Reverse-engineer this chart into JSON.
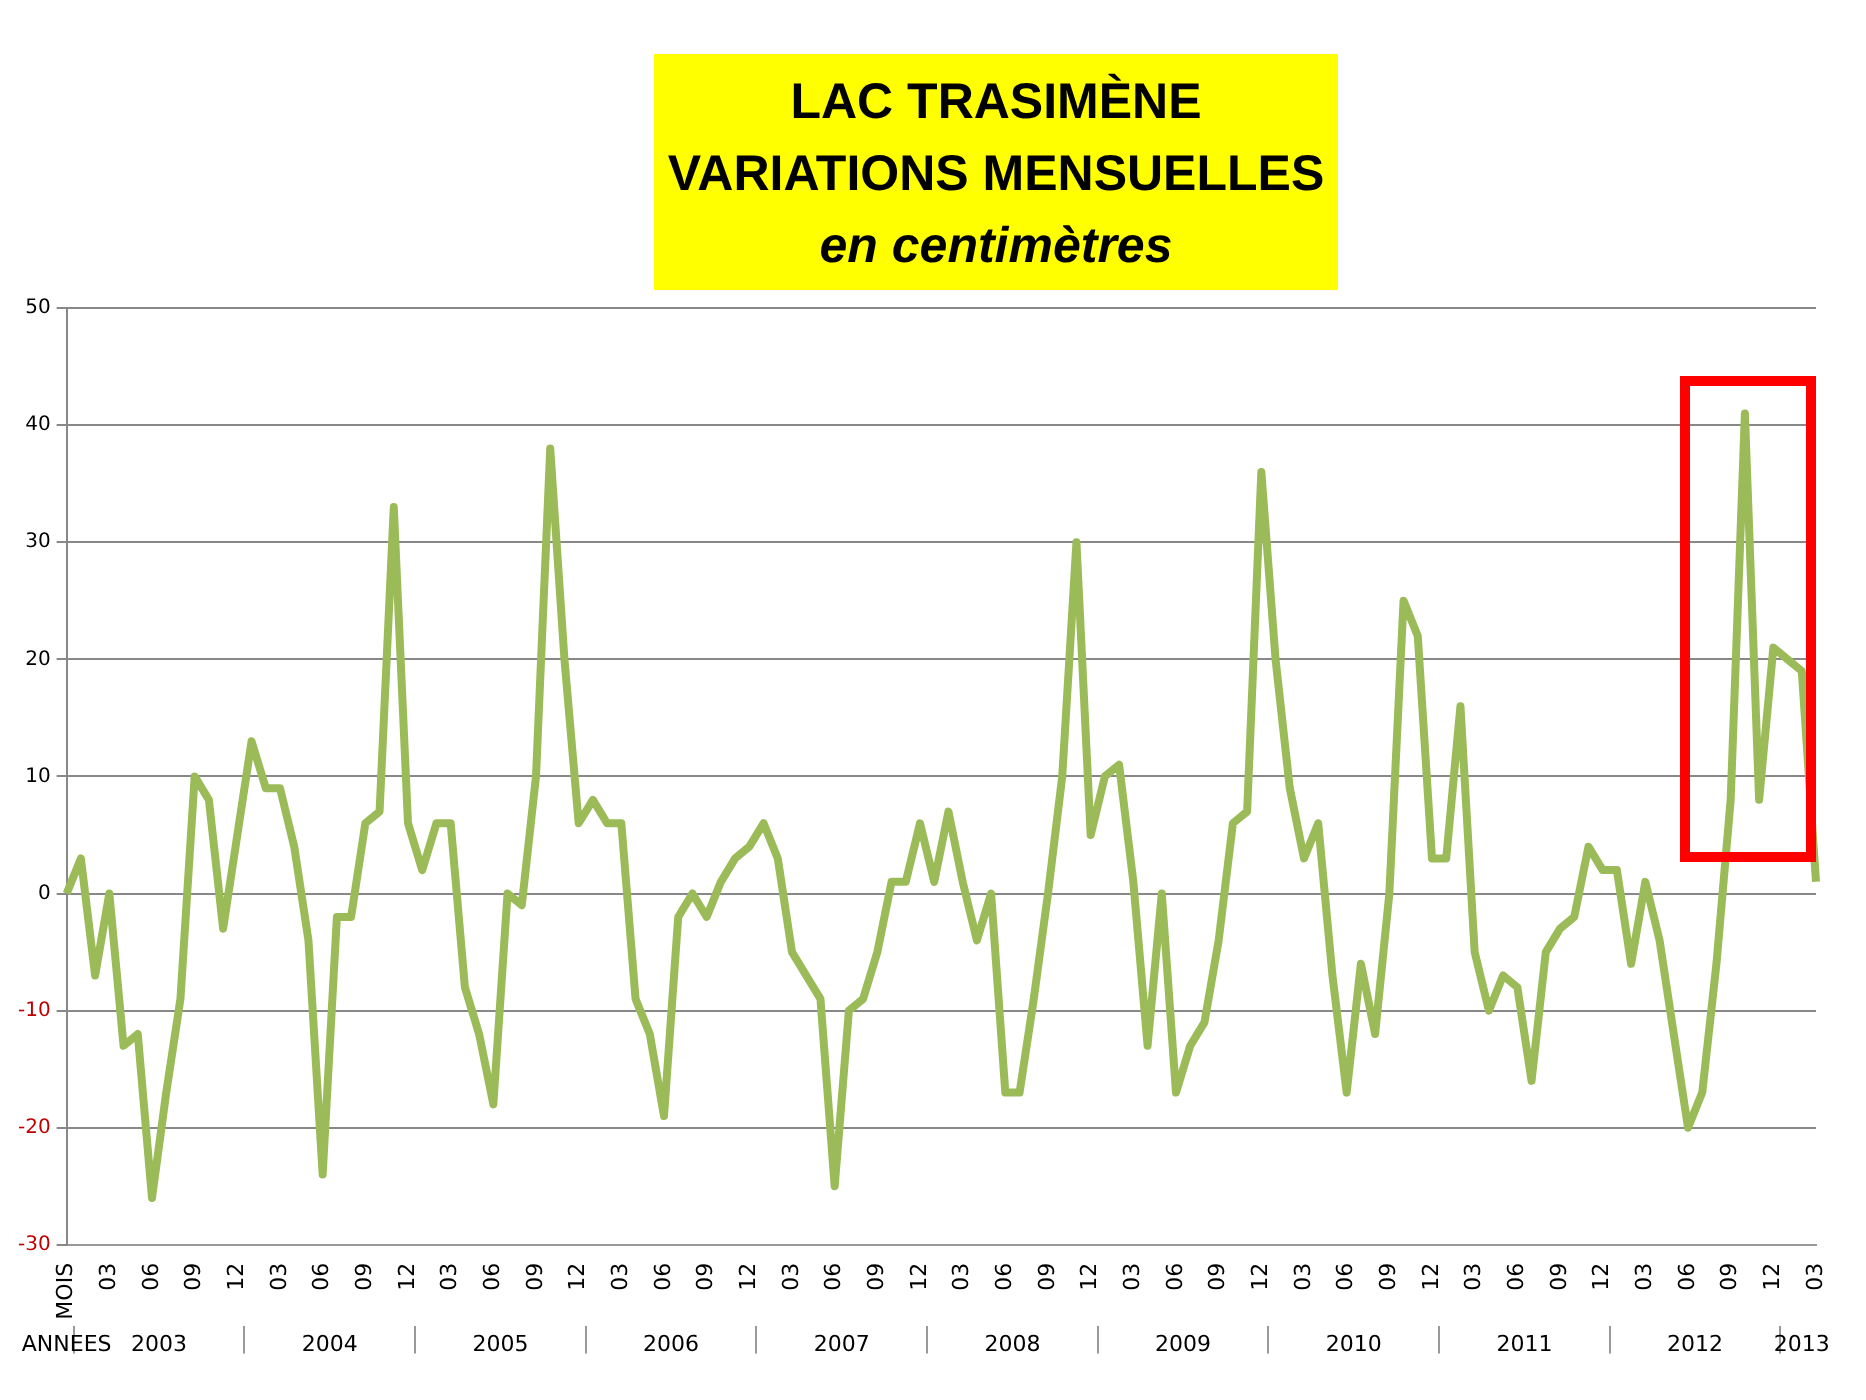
{
  "chart_data": {
    "type": "line",
    "title": "LAC TRASIMÈNE\nVARIATIONS MENSUELLES",
    "subtitle": "en centimètres",
    "categories": [
      "MOIS",
      null,
      null,
      "03",
      null,
      null,
      "06",
      null,
      null,
      "09",
      null,
      null,
      "12",
      null,
      null,
      "03",
      null,
      null,
      "06",
      null,
      null,
      "09",
      null,
      null,
      "12",
      null,
      null,
      "03",
      null,
      null,
      "06",
      null,
      null,
      "09",
      null,
      null,
      "12",
      null,
      null,
      "03",
      null,
      null,
      "06",
      null,
      null,
      "09",
      null,
      null,
      "12",
      null,
      null,
      "03",
      null,
      null,
      "06",
      null,
      null,
      "09",
      null,
      null,
      "12",
      null,
      null,
      "03",
      null,
      null,
      "06",
      null,
      null,
      "09",
      null,
      null,
      "12",
      null,
      null,
      "03",
      null,
      null,
      "06",
      null,
      null,
      "09",
      null,
      null,
      "12",
      null,
      null,
      "03",
      null,
      null,
      "06",
      null,
      null,
      "09",
      null,
      null,
      "12",
      null,
      null,
      "03",
      null,
      null,
      "06",
      null,
      null,
      "09",
      null,
      null,
      "12",
      null,
      null,
      "03",
      null,
      null,
      "06",
      null,
      null,
      "09",
      null,
      null,
      "12",
      null,
      null,
      "03"
    ],
    "series": [
      {
        "color": "#9bbb59",
        "values": [
          0,
          3,
          -7,
          0,
          -13,
          -12,
          -26,
          -17,
          -9,
          10,
          8,
          -3,
          5,
          13,
          9,
          9,
          4,
          -4,
          -24,
          -2,
          -2,
          6,
          7,
          33,
          6,
          2,
          6,
          6,
          -8,
          -12,
          -18,
          0,
          -1,
          10,
          38,
          20,
          6,
          8,
          6,
          6,
          -9,
          -12,
          -19,
          -2,
          0,
          -2,
          1,
          3,
          4,
          6,
          3,
          -5,
          -7,
          -9,
          -25,
          -10,
          -9,
          -5,
          1,
          1,
          6,
          1,
          7,
          1,
          -4,
          0,
          -17,
          -17,
          -9,
          0,
          10,
          30,
          5,
          10,
          11,
          1,
          -13,
          0,
          -17,
          -13,
          -11,
          -4,
          6,
          7,
          36,
          20,
          9,
          3,
          6,
          -7,
          -17,
          -6,
          -12,
          0,
          25,
          22,
          3,
          3,
          16,
          -5,
          -10,
          -7,
          -8,
          -16,
          -5,
          -3,
          -2,
          4,
          2,
          2,
          -6,
          1,
          -4,
          -12,
          -20,
          -17,
          -6,
          8,
          41,
          8,
          21,
          20,
          19,
          1
        ]
      }
    ],
    "annotations": [
      "ANNEES",
      "2003",
      "2004",
      "2005",
      "2006",
      "2007",
      "2008",
      "2009",
      "2010",
      "2011",
      "2012",
      "2013"
    ],
    "ylim": [
      -30,
      50
    ],
    "yticks": [
      -30,
      -20,
      -10,
      0,
      10,
      20,
      30,
      40,
      50
    ],
    "grid": "y",
    "legend": false,
    "marker": "none",
    "line_style": "solid"
  }
}
